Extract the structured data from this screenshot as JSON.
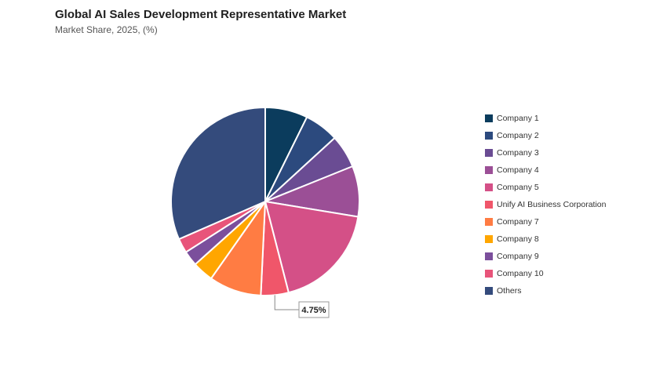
{
  "header": {
    "title": "Global AI Sales Development Representative Market",
    "subtitle": "Market Share, 2025, (%)"
  },
  "chart_data": {
    "type": "pie",
    "title": "Global AI Sales Development Representative Market",
    "subtitle": "Market Share, 2025, (%)",
    "legend_position": "right",
    "start_angle_deg": 0,
    "direction": "clockwise",
    "slices": [
      {
        "label": "Company 1",
        "value": 7.3,
        "color": "#0b3c5d"
      },
      {
        "label": "Company 2",
        "value": 5.9,
        "color": "#2c4a7e"
      },
      {
        "label": "Company 3",
        "value": 5.7,
        "color": "#6a4c93"
      },
      {
        "label": "Company 4",
        "value": 8.7,
        "color": "#9b4f96"
      },
      {
        "label": "Company 5",
        "value": 18.4,
        "color": "#d45087"
      },
      {
        "label": "Unify AI Business Corporation",
        "value": 4.75,
        "color": "#f0566a"
      },
      {
        "label": "Company 7",
        "value": 9.0,
        "color": "#ff7c43"
      },
      {
        "label": "Company 8",
        "value": 3.6,
        "color": "#ffa600"
      },
      {
        "label": "Company 9",
        "value": 2.6,
        "color": "#7b4f9c"
      },
      {
        "label": "Company 10",
        "value": 2.5,
        "color": "#e8547a"
      },
      {
        "label": "Others",
        "value": 31.55,
        "color": "#344b7c"
      }
    ],
    "callout": {
      "slice_index": 5,
      "text": "4.75%"
    }
  }
}
